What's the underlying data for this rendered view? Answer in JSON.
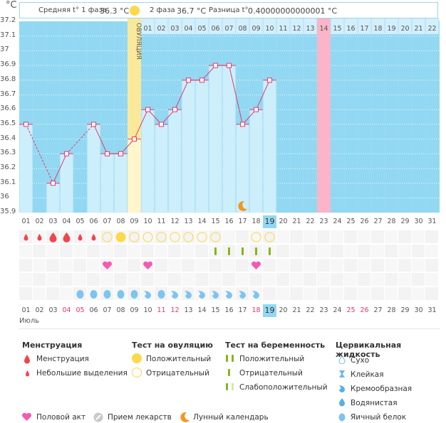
{
  "header": {
    "avg1_label": "Средняя t° 1 фаза",
    "avg1_value": "36.3 °C",
    "avg2_label": "2 фаза",
    "avg2_value": "36.7 °C",
    "diff_label": "Разница t°",
    "diff_value": "0.40000000000001 °C",
    "unit": "°C"
  },
  "month_label": "Июль",
  "ovulation_label": "ОВУЛЯЦИЯ",
  "colors": {
    "sky": "#92d8f2",
    "bar": "#cdeefb",
    "ovulation": "#fbe99b",
    "ovulation_bar": "#fff6cc",
    "expected_period": "#fbb4c8",
    "line": "#e8396b",
    "today": "#92d8f2",
    "weekend": "#e8396b"
  },
  "chart_data": {
    "type": "bar",
    "title": "",
    "xlabel": "Июль",
    "ylabel": "°C",
    "ylim": [
      35.9,
      37.2
    ],
    "yticks": [
      "37.2",
      "37.1",
      "37",
      "36.9",
      "36.8",
      "36.7",
      "36.6",
      "36.5",
      "36.4",
      "36.3",
      "36.2",
      "36.1",
      "36",
      "35.9"
    ],
    "categories": [
      "01",
      "02",
      "03",
      "04",
      "05",
      "06",
      "07",
      "08",
      "09",
      "10",
      "11",
      "12",
      "13",
      "14",
      "15",
      "16",
      "17",
      "18",
      "19",
      "20",
      "21",
      "22",
      "23",
      "24",
      "25",
      "26",
      "27",
      "28",
      "29",
      "30",
      "31"
    ],
    "temperatures": [
      36.5,
      null,
      36.1,
      36.3,
      null,
      36.5,
      36.3,
      36.3,
      36.4,
      36.6,
      36.5,
      36.6,
      36.8,
      36.8,
      36.9,
      36.9,
      36.5,
      36.6,
      36.8,
      null,
      null,
      null,
      null,
      null,
      null,
      null,
      null,
      null,
      null,
      null,
      null
    ],
    "dashed_segments": [
      [
        0,
        2
      ],
      [
        3,
        5
      ]
    ],
    "ovulation_day_index": 8,
    "expected_period_day_index": 22,
    "today_index": 18,
    "cycle_days": [
      "01",
      "02",
      "03",
      "04",
      "05",
      "06",
      "07",
      "08",
      "09",
      "10",
      "11",
      "12",
      "13",
      "14",
      "15",
      "16",
      "17",
      "18",
      "19",
      "20",
      "21",
      "22"
    ],
    "cycle_days_start_index": 9,
    "cycle_highlight_day": "14",
    "weekend_indices": [
      3,
      4,
      10,
      11,
      17,
      24,
      25
    ],
    "moon_index": 16,
    "grid": true
  },
  "rows": {
    "menstruation": [
      "small",
      "small",
      "large",
      "large",
      "small",
      "small",
      null,
      null,
      null,
      null,
      null,
      null,
      null,
      null,
      null,
      null,
      null,
      null,
      null,
      null,
      null,
      null,
      null,
      null,
      null,
      null,
      null,
      null,
      null,
      null,
      null
    ],
    "ovulation_test": [
      null,
      null,
      null,
      null,
      null,
      null,
      "negative",
      "positive",
      "negative",
      "negative",
      "negative",
      "negative",
      "negative",
      "negative",
      "negative",
      null,
      null,
      "negative",
      "negative",
      null,
      null,
      null,
      null,
      null,
      null,
      null,
      null,
      null,
      null,
      null,
      null
    ],
    "pregnancy_test": [
      null,
      null,
      null,
      null,
      null,
      null,
      null,
      null,
      null,
      null,
      null,
      null,
      null,
      null,
      "negative",
      "negative",
      "negative",
      "negative",
      "negative",
      null,
      null,
      null,
      null,
      null,
      null,
      null,
      null,
      null,
      null,
      null,
      null
    ],
    "intercourse": [
      null,
      null,
      null,
      null,
      null,
      null,
      true,
      null,
      null,
      true,
      null,
      null,
      null,
      null,
      null,
      null,
      null,
      true,
      null,
      null,
      null,
      null,
      null,
      null,
      null,
      null,
      null,
      null,
      null,
      null,
      null
    ],
    "medication": [],
    "cervical_fluid": [
      null,
      null,
      null,
      null,
      "egg-white",
      "egg-white",
      "egg-white",
      "egg-white",
      "egg-white",
      "creamy",
      "egg-white",
      "creamy",
      "creamy",
      "creamy",
      "creamy",
      "creamy",
      "creamy",
      "creamy",
      null,
      null,
      null,
      null,
      null,
      null,
      null,
      null,
      null,
      null,
      null,
      null,
      null
    ]
  },
  "legend": {
    "menstruation": {
      "title": "Менструация",
      "items": [
        "Менструация",
        "Небольшие выделения"
      ]
    },
    "ovulation_test": {
      "title": "Тест на овуляцию",
      "items": [
        "Положительный",
        "Отрицательный"
      ]
    },
    "pregnancy_test": {
      "title": "Тест на беременность",
      "items": [
        "Положительный",
        "Отрицательный",
        "Слабоположительный"
      ]
    },
    "cervical_fluid": {
      "title": "Цервикальная жидкость",
      "items": [
        "Сухо",
        "Клейкая",
        "Кремообразная",
        "Водянистая",
        "Яичный белок"
      ]
    },
    "other": [
      "Половой акт",
      "Прием лекарств",
      "Лунный календарь"
    ]
  }
}
